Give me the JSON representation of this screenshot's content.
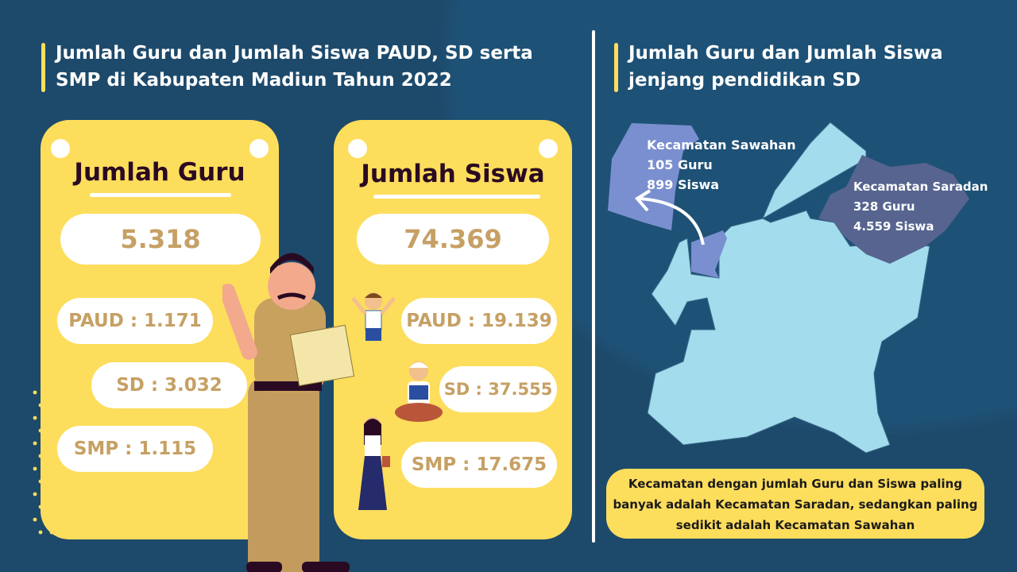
{
  "left": {
    "title_line1": "Jumlah Guru dan Jumlah Siswa PAUD, SD serta",
    "title_line2": "SMP di Kabupaten Madiun Tahun 2022",
    "guru": {
      "title": "Jumlah Guru",
      "total": "5.318",
      "paud": "PAUD : 1.171",
      "sd": "SD : 3.032",
      "smp": "SMP : 1.115"
    },
    "siswa": {
      "title": "Jumlah Siswa",
      "total": "74.369",
      "paud": "PAUD : 19.139",
      "sd": "SD : 37.555",
      "smp": "SMP : 17.675"
    }
  },
  "right": {
    "title_line1": "Jumlah Guru dan Jumlah Siswa",
    "title_line2": "jenjang pendidikan SD",
    "sawahan": {
      "name": "Kecamatan Sawahan",
      "guru": "105 Guru",
      "siswa": "899 Siswa"
    },
    "saradan": {
      "name": "Kecamatan Saradan",
      "guru": "328 Guru",
      "siswa": "4.559 Siswa"
    },
    "note": "Kecamatan dengan jumlah Guru dan Siswa paling banyak adalah Kecamatan Saradan, sedangkan paling sedikit adalah Kecamatan Sawahan"
  },
  "colors": {
    "background": "#1d4a6b",
    "card": "#fddd5c",
    "value_text": "#c6a064",
    "map_base": "#a3dcec",
    "map_sawahan": "#7a8fcf",
    "map_saradan": "#56648f"
  }
}
